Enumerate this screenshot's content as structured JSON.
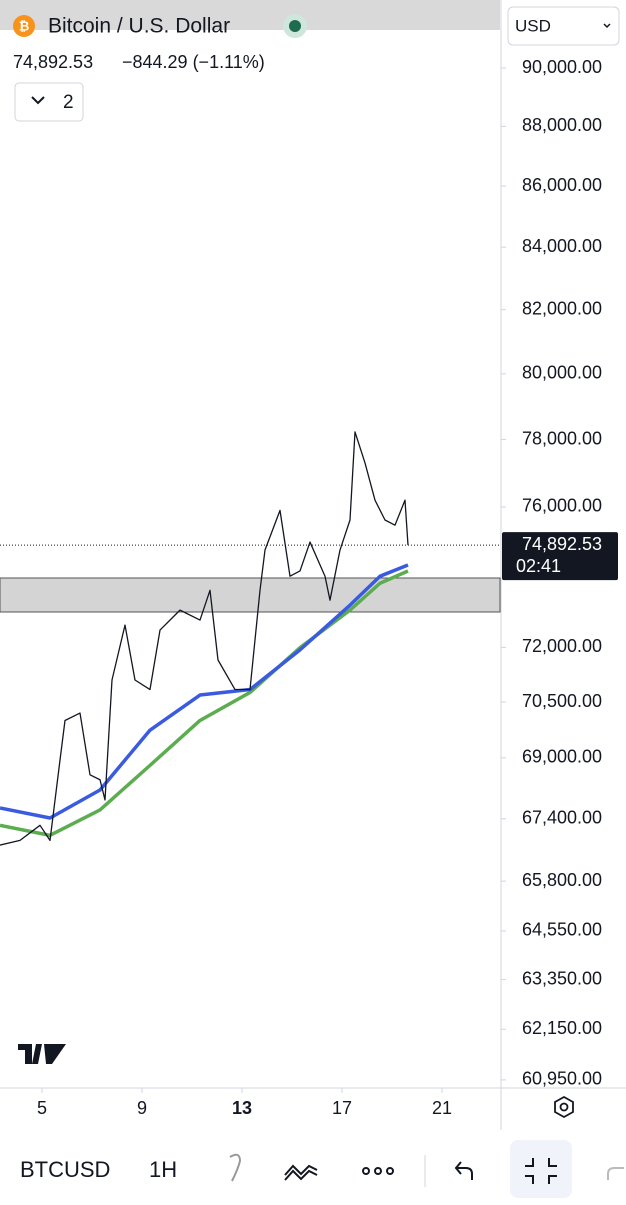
{
  "header": {
    "symbol_name": "Bitcoin / U.S. Dollar",
    "price": "74,892.53",
    "change": "−844.29 (−1.11%)",
    "indicators_count": "2",
    "currency": "USD"
  },
  "chart_data": {
    "type": "line",
    "log": true,
    "xlim": [
      3.32,
      23.32
    ],
    "xticks": [
      5,
      9,
      13,
      17,
      21
    ],
    "ylim": [
      60760,
      92390
    ],
    "yticks": [
      {
        "value": 60950,
        "label": "60,950.00"
      },
      {
        "value": 62150,
        "label": "62,150.00"
      },
      {
        "value": 63350,
        "label": "63,350.00"
      },
      {
        "value": 64550,
        "label": "64,550.00"
      },
      {
        "value": 65800,
        "label": "65,800.00"
      },
      {
        "value": 67400,
        "label": "67,400.00"
      },
      {
        "value": 69000,
        "label": "69,000.00"
      },
      {
        "value": 70500,
        "label": "70,500.00"
      },
      {
        "value": 72000,
        "label": "72,000.00"
      },
      {
        "value": 76000,
        "label": "76,000.00"
      },
      {
        "value": 78000,
        "label": "78,000.00"
      },
      {
        "value": 80000,
        "label": "80,000.00"
      },
      {
        "value": 82000,
        "label": "82,000.00"
      },
      {
        "value": 84000,
        "label": "84,000.00"
      },
      {
        "value": 86000,
        "label": "86,000.00"
      },
      {
        "value": 88000,
        "label": "88,000.00"
      },
      {
        "value": 90000,
        "label": "90,000.00"
      }
    ],
    "countdown": "02:41",
    "series": [
      {
        "color": "#131722",
        "x": [
          3.32,
          4.12,
          4.92,
          5.32,
          5.72,
          5.92,
          6.52,
          6.92,
          7.32,
          7.52,
          7.8,
          8.32,
          8.72,
          9.32,
          9.72,
          10.52,
          11.32,
          11.72,
          12.04,
          12.72,
          13.32,
          13.72,
          13.92,
          14.52,
          14.92,
          15.32,
          15.72,
          16.32,
          16.52,
          16.92,
          17.32,
          17.52,
          17.92,
          18.32,
          18.72,
          19.12,
          19.52,
          19.64
        ],
        "values": [
          66720,
          66840,
          67230,
          66840,
          68940,
          70000,
          70200,
          68550,
          68420,
          67890,
          71100,
          72620,
          71100,
          70840,
          72480,
          73040,
          72760,
          73600,
          71650,
          70840,
          70840,
          73600,
          74750,
          75900,
          74000,
          74150,
          74980,
          74000,
          73320,
          74750,
          75620,
          78230,
          77300,
          76200,
          75620,
          75470,
          76200,
          74892.53
        ]
      },
      {
        "color": "#3a5be0",
        "x": [
          3.32,
          5.32,
          7.32,
          9.32,
          11.32,
          13.32,
          15.32,
          17.32,
          18.52,
          19.64
        ],
        "values": [
          67680,
          67420,
          68150,
          69740,
          70690,
          70840,
          71930,
          73180,
          74000,
          74320
        ]
      },
      {
        "color": "#5cad4f",
        "x": [
          3.32,
          5.32,
          7.32,
          9.32,
          11.32,
          13.32,
          15.32,
          17.32,
          18.52,
          19.64
        ],
        "values": [
          67230,
          66970,
          67630,
          68800,
          70000,
          70760,
          71990,
          73040,
          73800,
          74150
        ]
      }
    ]
  },
  "toolbar": {
    "symbol": "BTCUSD",
    "interval": "1H"
  }
}
